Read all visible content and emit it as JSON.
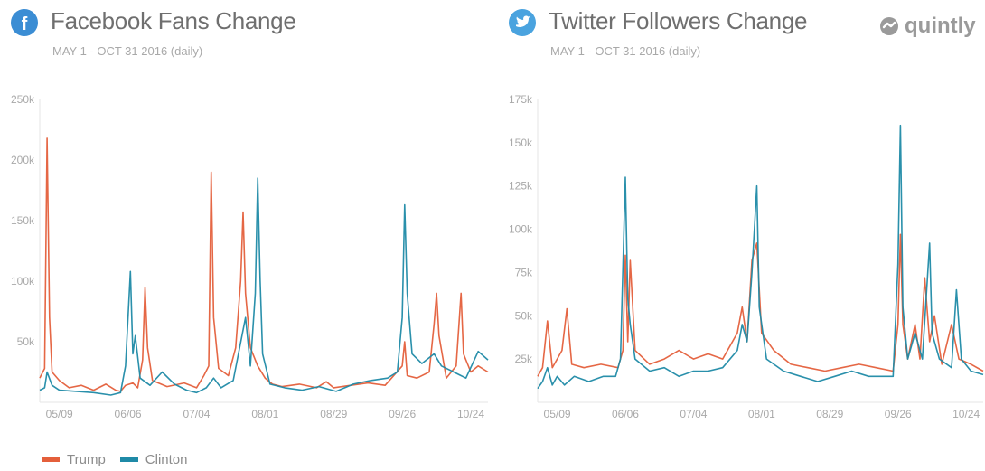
{
  "colors": {
    "trump": "#e45f3b",
    "clinton": "#1f8aa7",
    "facebook": "#3b8dd4",
    "twitter": "#4aa3df",
    "title": "#6f6f6f",
    "subtitle": "#a9a9a9",
    "axis": "#a9a9a9",
    "grid": "#e6e6e6"
  },
  "icons": {
    "facebook": "facebook-icon",
    "twitter": "twitter-icon",
    "brand": "quintly-logo-icon"
  },
  "brand": {
    "name": "quintly"
  },
  "legend": {
    "items": [
      "Trump",
      "Clinton"
    ]
  },
  "chart_data": [
    {
      "type": "line",
      "title": "Facebook Fans Change",
      "subtitle": "MAY 1 - OCT 31 2016 (daily)",
      "x_start": "2016-05-01",
      "x_end": "2016-10-31",
      "x_ticks": [
        "05/09",
        "06/06",
        "07/04",
        "08/01",
        "08/29",
        "09/26",
        "10/24"
      ],
      "y_ticks": [
        "250k",
        "200k",
        "150k",
        "100k",
        "50k"
      ],
      "ylim": [
        0,
        250000
      ],
      "grid": false,
      "series": [
        {
          "name": "Trump",
          "color": "#e45f3b",
          "points": [
            [
              "2016-05-01",
              20000
            ],
            [
              "2016-05-03",
              28000
            ],
            [
              "2016-05-04",
              218000
            ],
            [
              "2016-05-05",
              70000
            ],
            [
              "2016-05-06",
              25000
            ],
            [
              "2016-05-09",
              18000
            ],
            [
              "2016-05-13",
              12000
            ],
            [
              "2016-05-18",
              14000
            ],
            [
              "2016-05-23",
              10000
            ],
            [
              "2016-05-28",
              15000
            ],
            [
              "2016-06-01",
              10000
            ],
            [
              "2016-06-03",
              9000
            ],
            [
              "2016-06-05",
              14000
            ],
            [
              "2016-06-08",
              16000
            ],
            [
              "2016-06-10",
              12000
            ],
            [
              "2016-06-12",
              35000
            ],
            [
              "2016-06-13",
              95000
            ],
            [
              "2016-06-14",
              45000
            ],
            [
              "2016-06-16",
              18000
            ],
            [
              "2016-06-22",
              13000
            ],
            [
              "2016-06-29",
              16000
            ],
            [
              "2016-07-04",
              12000
            ],
            [
              "2016-07-07",
              22000
            ],
            [
              "2016-07-09",
              30000
            ],
            [
              "2016-07-10",
              190000
            ],
            [
              "2016-07-11",
              70000
            ],
            [
              "2016-07-13",
              28000
            ],
            [
              "2016-07-17",
              22000
            ],
            [
              "2016-07-20",
              45000
            ],
            [
              "2016-07-22",
              100000
            ],
            [
              "2016-07-23",
              157000
            ],
            [
              "2016-07-24",
              90000
            ],
            [
              "2016-07-26",
              45000
            ],
            [
              "2016-07-29",
              30000
            ],
            [
              "2016-08-01",
              20000
            ],
            [
              "2016-08-04",
              15000
            ],
            [
              "2016-08-08",
              13000
            ],
            [
              "2016-08-15",
              15000
            ],
            [
              "2016-08-22",
              12000
            ],
            [
              "2016-08-26",
              17000
            ],
            [
              "2016-08-29",
              12000
            ],
            [
              "2016-09-05",
              14000
            ],
            [
              "2016-09-12",
              16000
            ],
            [
              "2016-09-19",
              14000
            ],
            [
              "2016-09-26",
              30000
            ],
            [
              "2016-09-27",
              50000
            ],
            [
              "2016-09-28",
              22000
            ],
            [
              "2016-10-02",
              20000
            ],
            [
              "2016-10-07",
              25000
            ],
            [
              "2016-10-09",
              65000
            ],
            [
              "2016-10-10",
              90000
            ],
            [
              "2016-10-11",
              55000
            ],
            [
              "2016-10-14",
              20000
            ],
            [
              "2016-10-18",
              30000
            ],
            [
              "2016-10-20",
              90000
            ],
            [
              "2016-10-21",
              40000
            ],
            [
              "2016-10-24",
              25000
            ],
            [
              "2016-10-27",
              30000
            ],
            [
              "2016-10-31",
              25000
            ]
          ]
        },
        {
          "name": "Clinton",
          "color": "#1f8aa7",
          "points": [
            [
              "2016-05-01",
              10000
            ],
            [
              "2016-05-03",
              12000
            ],
            [
              "2016-05-04",
              25000
            ],
            [
              "2016-05-06",
              14000
            ],
            [
              "2016-05-09",
              10000
            ],
            [
              "2016-05-16",
              9000
            ],
            [
              "2016-05-23",
              8000
            ],
            [
              "2016-05-30",
              6000
            ],
            [
              "2016-06-03",
              8000
            ],
            [
              "2016-06-05",
              30000
            ],
            [
              "2016-06-07",
              108000
            ],
            [
              "2016-06-08",
              40000
            ],
            [
              "2016-06-09",
              55000
            ],
            [
              "2016-06-11",
              20000
            ],
            [
              "2016-06-15",
              14000
            ],
            [
              "2016-06-20",
              25000
            ],
            [
              "2016-06-25",
              15000
            ],
            [
              "2016-06-30",
              10000
            ],
            [
              "2016-07-04",
              8000
            ],
            [
              "2016-07-08",
              12000
            ],
            [
              "2016-07-11",
              20000
            ],
            [
              "2016-07-14",
              12000
            ],
            [
              "2016-07-19",
              18000
            ],
            [
              "2016-07-24",
              70000
            ],
            [
              "2016-07-26",
              30000
            ],
            [
              "2016-07-28",
              90000
            ],
            [
              "2016-07-29",
              185000
            ],
            [
              "2016-07-30",
              100000
            ],
            [
              "2016-07-31",
              40000
            ],
            [
              "2016-08-03",
              15000
            ],
            [
              "2016-08-09",
              12000
            ],
            [
              "2016-08-16",
              10000
            ],
            [
              "2016-08-23",
              13000
            ],
            [
              "2016-08-30",
              9000
            ],
            [
              "2016-09-06",
              15000
            ],
            [
              "2016-09-13",
              18000
            ],
            [
              "2016-09-20",
              20000
            ],
            [
              "2016-09-24",
              25000
            ],
            [
              "2016-09-26",
              70000
            ],
            [
              "2016-09-27",
              163000
            ],
            [
              "2016-09-28",
              90000
            ],
            [
              "2016-09-30",
              40000
            ],
            [
              "2016-10-04",
              32000
            ],
            [
              "2016-10-09",
              40000
            ],
            [
              "2016-10-12",
              30000
            ],
            [
              "2016-10-17",
              25000
            ],
            [
              "2016-10-22",
              20000
            ],
            [
              "2016-10-27",
              42000
            ],
            [
              "2016-10-31",
              35000
            ]
          ]
        }
      ]
    },
    {
      "type": "line",
      "title": "Twitter Followers Change",
      "subtitle": "MAY 1 - OCT 31 2016 (daily)",
      "x_start": "2016-05-01",
      "x_end": "2016-10-31",
      "x_ticks": [
        "05/09",
        "06/06",
        "07/04",
        "08/01",
        "08/29",
        "09/26",
        "10/24"
      ],
      "y_ticks": [
        "175k",
        "150k",
        "125k",
        "100k",
        "75k",
        "50k",
        "25k"
      ],
      "ylim": [
        0,
        175000
      ],
      "grid": false,
      "series": [
        {
          "name": "Trump",
          "color": "#e45f3b",
          "points": [
            [
              "2016-05-01",
              15000
            ],
            [
              "2016-05-03",
              20000
            ],
            [
              "2016-05-05",
              47000
            ],
            [
              "2016-05-07",
              20000
            ],
            [
              "2016-05-09",
              25000
            ],
            [
              "2016-05-11",
              30000
            ],
            [
              "2016-05-13",
              54000
            ],
            [
              "2016-05-15",
              22000
            ],
            [
              "2016-05-20",
              20000
            ],
            [
              "2016-05-27",
              22000
            ],
            [
              "2016-06-03",
              20000
            ],
            [
              "2016-06-05",
              30000
            ],
            [
              "2016-06-06",
              85000
            ],
            [
              "2016-06-07",
              35000
            ],
            [
              "2016-06-08",
              82000
            ],
            [
              "2016-06-10",
              30000
            ],
            [
              "2016-06-16",
              22000
            ],
            [
              "2016-06-22",
              25000
            ],
            [
              "2016-06-28",
              30000
            ],
            [
              "2016-07-04",
              25000
            ],
            [
              "2016-07-10",
              28000
            ],
            [
              "2016-07-16",
              25000
            ],
            [
              "2016-07-22",
              40000
            ],
            [
              "2016-07-24",
              55000
            ],
            [
              "2016-07-26",
              35000
            ],
            [
              "2016-07-28",
              82000
            ],
            [
              "2016-07-30",
              92000
            ],
            [
              "2016-08-01",
              40000
            ],
            [
              "2016-08-06",
              30000
            ],
            [
              "2016-08-13",
              22000
            ],
            [
              "2016-08-20",
              20000
            ],
            [
              "2016-08-27",
              18000
            ],
            [
              "2016-09-03",
              20000
            ],
            [
              "2016-09-10",
              22000
            ],
            [
              "2016-09-17",
              20000
            ],
            [
              "2016-09-24",
              18000
            ],
            [
              "2016-09-26",
              45000
            ],
            [
              "2016-09-27",
              97000
            ],
            [
              "2016-09-28",
              45000
            ],
            [
              "2016-09-30",
              25000
            ],
            [
              "2016-10-03",
              45000
            ],
            [
              "2016-10-05",
              25000
            ],
            [
              "2016-10-07",
              72000
            ],
            [
              "2016-10-09",
              35000
            ],
            [
              "2016-10-11",
              50000
            ],
            [
              "2016-10-14",
              22000
            ],
            [
              "2016-10-18",
              45000
            ],
            [
              "2016-10-21",
              25000
            ],
            [
              "2016-10-26",
              22000
            ],
            [
              "2016-10-31",
              18000
            ]
          ]
        },
        {
          "name": "Clinton",
          "color": "#1f8aa7",
          "points": [
            [
              "2016-05-01",
              8000
            ],
            [
              "2016-05-03",
              12000
            ],
            [
              "2016-05-05",
              20000
            ],
            [
              "2016-05-07",
              10000
            ],
            [
              "2016-05-09",
              15000
            ],
            [
              "2016-05-12",
              10000
            ],
            [
              "2016-05-16",
              15000
            ],
            [
              "2016-05-22",
              12000
            ],
            [
              "2016-05-28",
              15000
            ],
            [
              "2016-06-02",
              15000
            ],
            [
              "2016-06-04",
              25000
            ],
            [
              "2016-06-06",
              130000
            ],
            [
              "2016-06-07",
              60000
            ],
            [
              "2016-06-08",
              45000
            ],
            [
              "2016-06-10",
              25000
            ],
            [
              "2016-06-16",
              18000
            ],
            [
              "2016-06-22",
              20000
            ],
            [
              "2016-06-28",
              15000
            ],
            [
              "2016-07-04",
              18000
            ],
            [
              "2016-07-10",
              18000
            ],
            [
              "2016-07-16",
              20000
            ],
            [
              "2016-07-22",
              30000
            ],
            [
              "2016-07-24",
              45000
            ],
            [
              "2016-07-26",
              35000
            ],
            [
              "2016-07-28",
              75000
            ],
            [
              "2016-07-30",
              125000
            ],
            [
              "2016-07-31",
              55000
            ],
            [
              "2016-08-03",
              25000
            ],
            [
              "2016-08-10",
              18000
            ],
            [
              "2016-08-17",
              15000
            ],
            [
              "2016-08-24",
              12000
            ],
            [
              "2016-08-31",
              15000
            ],
            [
              "2016-09-07",
              18000
            ],
            [
              "2016-09-14",
              15000
            ],
            [
              "2016-09-21",
              15000
            ],
            [
              "2016-09-24",
              15000
            ],
            [
              "2016-09-26",
              80000
            ],
            [
              "2016-09-27",
              160000
            ],
            [
              "2016-09-28",
              55000
            ],
            [
              "2016-09-30",
              25000
            ],
            [
              "2016-10-03",
              40000
            ],
            [
              "2016-10-06",
              25000
            ],
            [
              "2016-10-09",
              92000
            ],
            [
              "2016-10-10",
              40000
            ],
            [
              "2016-10-13",
              25000
            ],
            [
              "2016-10-18",
              20000
            ],
            [
              "2016-10-20",
              65000
            ],
            [
              "2016-10-22",
              25000
            ],
            [
              "2016-10-26",
              18000
            ],
            [
              "2016-10-31",
              16000
            ]
          ]
        }
      ]
    }
  ]
}
